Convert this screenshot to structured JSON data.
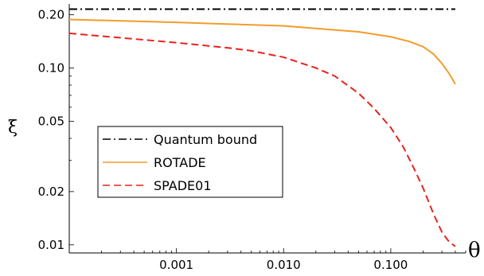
{
  "chart_data": {
    "type": "line",
    "xlabel": "θ",
    "ylabel": "ξ",
    "xscale": "log",
    "yscale": "log",
    "xlim": [
      0.0001,
      0.5
    ],
    "ylim": [
      0.009,
      0.23
    ],
    "xticks": [
      0.001,
      0.01,
      0.1
    ],
    "xtick_labels": [
      "0.001",
      "0.010",
      "0.100"
    ],
    "yticks": [
      0.01,
      0.02,
      0.05,
      0.1,
      0.2
    ],
    "ytick_labels": [
      "0.01",
      "0.02",
      "0.05",
      "0.10",
      "0.20"
    ],
    "grid": false,
    "legend_position": "center-left",
    "series": [
      {
        "name": "Quantum bound",
        "color": "#000000",
        "style": "dash-dot",
        "x": [
          0.0001,
          0.4
        ],
        "y": [
          0.215,
          0.215
        ]
      },
      {
        "name": "ROTADE",
        "color": "#f39c2a",
        "style": "solid",
        "x": [
          0.0001,
          0.001,
          0.01,
          0.05,
          0.1,
          0.15,
          0.2,
          0.25,
          0.3,
          0.35,
          0.4
        ],
        "y": [
          0.188,
          0.181,
          0.173,
          0.16,
          0.15,
          0.141,
          0.132,
          0.12,
          0.106,
          0.093,
          0.081
        ]
      },
      {
        "name": "SPADE01",
        "color": "#e8231f",
        "style": "dashed",
        "x": [
          0.0001,
          0.001,
          0.003,
          0.005,
          0.01,
          0.02,
          0.03,
          0.05,
          0.07,
          0.1,
          0.13,
          0.16,
          0.2,
          0.25,
          0.3,
          0.35,
          0.4
        ],
        "y": [
          0.157,
          0.139,
          0.13,
          0.125,
          0.115,
          0.1,
          0.09,
          0.072,
          0.059,
          0.046,
          0.036,
          0.028,
          0.021,
          0.015,
          0.0118,
          0.0104,
          0.0098
        ]
      }
    ]
  }
}
